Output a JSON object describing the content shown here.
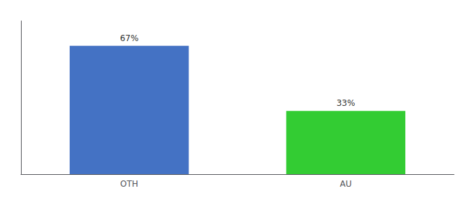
{
  "chart_data": {
    "type": "bar",
    "categories": [
      "OTH",
      "AU"
    ],
    "values": [
      67,
      33
    ],
    "value_labels": [
      "67%",
      "33%"
    ],
    "data_labels": true,
    "colors": [
      "#4472c4",
      "#33cc33"
    ],
    "ylim": [
      0,
      80
    ],
    "tick_labels": "x",
    "grid": false
  }
}
